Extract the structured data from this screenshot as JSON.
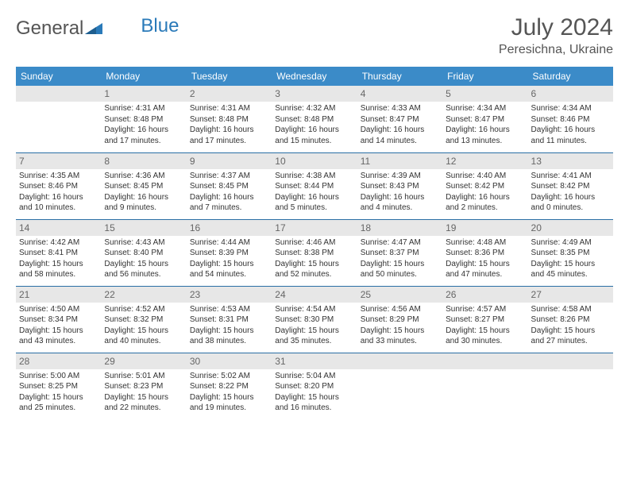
{
  "brand": {
    "part1": "General",
    "part2": "Blue"
  },
  "title": "July 2024",
  "location": "Peresichna, Ukraine",
  "colors": {
    "header_bg": "#3b8bc8",
    "header_text": "#ffffff",
    "daynum_bg": "#e7e7e7",
    "row_border": "#2a6fa5",
    "brand_gray": "#555555",
    "brand_blue": "#2a7ab9"
  },
  "weekdays": [
    "Sunday",
    "Monday",
    "Tuesday",
    "Wednesday",
    "Thursday",
    "Friday",
    "Saturday"
  ],
  "weeks": [
    [
      {
        "empty": true
      },
      {
        "day": "1",
        "sunrise": "Sunrise: 4:31 AM",
        "sunset": "Sunset: 8:48 PM",
        "daylight": "Daylight: 16 hours and 17 minutes."
      },
      {
        "day": "2",
        "sunrise": "Sunrise: 4:31 AM",
        "sunset": "Sunset: 8:48 PM",
        "daylight": "Daylight: 16 hours and 17 minutes."
      },
      {
        "day": "3",
        "sunrise": "Sunrise: 4:32 AM",
        "sunset": "Sunset: 8:48 PM",
        "daylight": "Daylight: 16 hours and 15 minutes."
      },
      {
        "day": "4",
        "sunrise": "Sunrise: 4:33 AM",
        "sunset": "Sunset: 8:47 PM",
        "daylight": "Daylight: 16 hours and 14 minutes."
      },
      {
        "day": "5",
        "sunrise": "Sunrise: 4:34 AM",
        "sunset": "Sunset: 8:47 PM",
        "daylight": "Daylight: 16 hours and 13 minutes."
      },
      {
        "day": "6",
        "sunrise": "Sunrise: 4:34 AM",
        "sunset": "Sunset: 8:46 PM",
        "daylight": "Daylight: 16 hours and 11 minutes."
      }
    ],
    [
      {
        "day": "7",
        "sunrise": "Sunrise: 4:35 AM",
        "sunset": "Sunset: 8:46 PM",
        "daylight": "Daylight: 16 hours and 10 minutes."
      },
      {
        "day": "8",
        "sunrise": "Sunrise: 4:36 AM",
        "sunset": "Sunset: 8:45 PM",
        "daylight": "Daylight: 16 hours and 9 minutes."
      },
      {
        "day": "9",
        "sunrise": "Sunrise: 4:37 AM",
        "sunset": "Sunset: 8:45 PM",
        "daylight": "Daylight: 16 hours and 7 minutes."
      },
      {
        "day": "10",
        "sunrise": "Sunrise: 4:38 AM",
        "sunset": "Sunset: 8:44 PM",
        "daylight": "Daylight: 16 hours and 5 minutes."
      },
      {
        "day": "11",
        "sunrise": "Sunrise: 4:39 AM",
        "sunset": "Sunset: 8:43 PM",
        "daylight": "Daylight: 16 hours and 4 minutes."
      },
      {
        "day": "12",
        "sunrise": "Sunrise: 4:40 AM",
        "sunset": "Sunset: 8:42 PM",
        "daylight": "Daylight: 16 hours and 2 minutes."
      },
      {
        "day": "13",
        "sunrise": "Sunrise: 4:41 AM",
        "sunset": "Sunset: 8:42 PM",
        "daylight": "Daylight: 16 hours and 0 minutes."
      }
    ],
    [
      {
        "day": "14",
        "sunrise": "Sunrise: 4:42 AM",
        "sunset": "Sunset: 8:41 PM",
        "daylight": "Daylight: 15 hours and 58 minutes."
      },
      {
        "day": "15",
        "sunrise": "Sunrise: 4:43 AM",
        "sunset": "Sunset: 8:40 PM",
        "daylight": "Daylight: 15 hours and 56 minutes."
      },
      {
        "day": "16",
        "sunrise": "Sunrise: 4:44 AM",
        "sunset": "Sunset: 8:39 PM",
        "daylight": "Daylight: 15 hours and 54 minutes."
      },
      {
        "day": "17",
        "sunrise": "Sunrise: 4:46 AM",
        "sunset": "Sunset: 8:38 PM",
        "daylight": "Daylight: 15 hours and 52 minutes."
      },
      {
        "day": "18",
        "sunrise": "Sunrise: 4:47 AM",
        "sunset": "Sunset: 8:37 PM",
        "daylight": "Daylight: 15 hours and 50 minutes."
      },
      {
        "day": "19",
        "sunrise": "Sunrise: 4:48 AM",
        "sunset": "Sunset: 8:36 PM",
        "daylight": "Daylight: 15 hours and 47 minutes."
      },
      {
        "day": "20",
        "sunrise": "Sunrise: 4:49 AM",
        "sunset": "Sunset: 8:35 PM",
        "daylight": "Daylight: 15 hours and 45 minutes."
      }
    ],
    [
      {
        "day": "21",
        "sunrise": "Sunrise: 4:50 AM",
        "sunset": "Sunset: 8:34 PM",
        "daylight": "Daylight: 15 hours and 43 minutes."
      },
      {
        "day": "22",
        "sunrise": "Sunrise: 4:52 AM",
        "sunset": "Sunset: 8:32 PM",
        "daylight": "Daylight: 15 hours and 40 minutes."
      },
      {
        "day": "23",
        "sunrise": "Sunrise: 4:53 AM",
        "sunset": "Sunset: 8:31 PM",
        "daylight": "Daylight: 15 hours and 38 minutes."
      },
      {
        "day": "24",
        "sunrise": "Sunrise: 4:54 AM",
        "sunset": "Sunset: 8:30 PM",
        "daylight": "Daylight: 15 hours and 35 minutes."
      },
      {
        "day": "25",
        "sunrise": "Sunrise: 4:56 AM",
        "sunset": "Sunset: 8:29 PM",
        "daylight": "Daylight: 15 hours and 33 minutes."
      },
      {
        "day": "26",
        "sunrise": "Sunrise: 4:57 AM",
        "sunset": "Sunset: 8:27 PM",
        "daylight": "Daylight: 15 hours and 30 minutes."
      },
      {
        "day": "27",
        "sunrise": "Sunrise: 4:58 AM",
        "sunset": "Sunset: 8:26 PM",
        "daylight": "Daylight: 15 hours and 27 minutes."
      }
    ],
    [
      {
        "day": "28",
        "sunrise": "Sunrise: 5:00 AM",
        "sunset": "Sunset: 8:25 PM",
        "daylight": "Daylight: 15 hours and 25 minutes."
      },
      {
        "day": "29",
        "sunrise": "Sunrise: 5:01 AM",
        "sunset": "Sunset: 8:23 PM",
        "daylight": "Daylight: 15 hours and 22 minutes."
      },
      {
        "day": "30",
        "sunrise": "Sunrise: 5:02 AM",
        "sunset": "Sunset: 8:22 PM",
        "daylight": "Daylight: 15 hours and 19 minutes."
      },
      {
        "day": "31",
        "sunrise": "Sunrise: 5:04 AM",
        "sunset": "Sunset: 8:20 PM",
        "daylight": "Daylight: 15 hours and 16 minutes."
      },
      {
        "empty": true
      },
      {
        "empty": true
      },
      {
        "empty": true
      }
    ]
  ]
}
